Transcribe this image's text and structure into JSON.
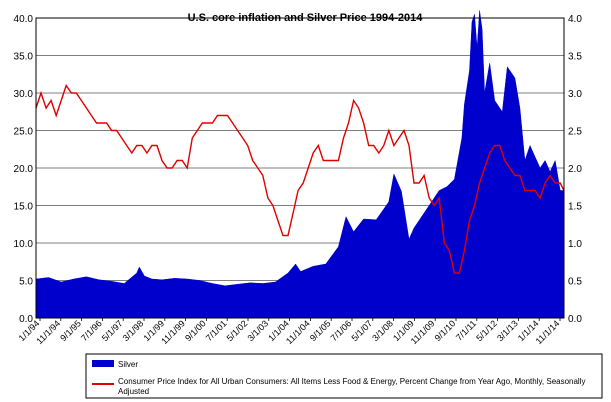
{
  "chart_data": {
    "type": "line",
    "title": "U.S. core inflation and Silver Price 1994-2014",
    "colors": {
      "silver": "#0000cc",
      "cpi": "#e00000",
      "grid": "#000000"
    },
    "left_axis": {
      "ylim": [
        0,
        40
      ],
      "ticks": [
        "0.0",
        "5.0",
        "10.0",
        "15.0",
        "20.0",
        "25.0",
        "30.0",
        "35.0",
        "40.0"
      ]
    },
    "right_axis": {
      "ylim": [
        0,
        4
      ],
      "ticks": [
        "0.0",
        "0.5",
        "1.0",
        "1.5",
        "2.0",
        "2.5",
        "3.0",
        "3.5",
        "4.0"
      ]
    },
    "x_ticks": [
      "1/1/94",
      "11/1/94",
      "9/1/95",
      "7/1/96",
      "5/1/97",
      "3/1/98",
      "1/1/99",
      "11/1/99",
      "9/1/00",
      "7/1/01",
      "5/1/02",
      "3/1/03",
      "1/1/04",
      "11/1/04",
      "9/1/05",
      "7/1/06",
      "5/1/07",
      "3/1/08",
      "1/1/09",
      "11/1/09",
      "9/1/10",
      "7/1/11",
      "5/1/12",
      "3/1/13",
      "1/1/14",
      "11/1/14"
    ],
    "x_range_years": [
      1994.0,
      2014.95
    ],
    "series": [
      {
        "name": "Silver",
        "axis": "left",
        "kind": "area",
        "x": [
          1994.0,
          1994.5,
          1995.0,
          1995.5,
          1996.0,
          1996.5,
          1997.0,
          1997.5,
          1998.0,
          1998.1,
          1998.3,
          1998.6,
          1999.0,
          1999.5,
          2000.0,
          2000.5,
          2001.0,
          2001.5,
          2002.0,
          2002.5,
          2003.0,
          2003.5,
          2004.0,
          2004.3,
          2004.5,
          2005.0,
          2005.5,
          2006.0,
          2006.3,
          2006.6,
          2007.0,
          2007.5,
          2008.0,
          2008.2,
          2008.5,
          2008.8,
          2009.0,
          2009.5,
          2010.0,
          2010.3,
          2010.6,
          2010.9,
          2011.0,
          2011.2,
          2011.3,
          2011.4,
          2011.5,
          2011.6,
          2011.7,
          2011.8,
          2012.0,
          2012.2,
          2012.5,
          2012.7,
          2013.0,
          2013.2,
          2013.4,
          2013.6,
          2013.8,
          2014.0,
          2014.2,
          2014.4,
          2014.6,
          2014.8,
          2014.95
        ],
        "values": [
          5.2,
          5.4,
          4.8,
          5.2,
          5.5,
          5.1,
          4.9,
          4.6,
          6.0,
          6.8,
          5.6,
          5.2,
          5.1,
          5.3,
          5.2,
          5.0,
          4.6,
          4.3,
          4.5,
          4.7,
          4.6,
          4.8,
          6.0,
          7.2,
          6.2,
          6.9,
          7.2,
          9.5,
          13.5,
          11.5,
          13.2,
          13.1,
          15.5,
          19.2,
          16.9,
          10.5,
          12.0,
          14.5,
          17.0,
          17.5,
          18.5,
          24.0,
          28.5,
          33.0,
          39.5,
          40.5,
          36.0,
          41.0,
          38.5,
          30.0,
          34.0,
          29.0,
          27.5,
          33.5,
          32.0,
          28.0,
          21.0,
          23.0,
          21.5,
          20.0,
          21.0,
          19.5,
          21.0,
          17.0,
          17.0
        ]
      },
      {
        "name": "Consumer Price Index for All Urban Consumers: All Items Less Food & Energy, Percent Change from Year Ago, Monthly, Seasonally Adjusted",
        "axis": "right",
        "kind": "line",
        "x": [
          1994.0,
          1994.2,
          1994.4,
          1994.6,
          1994.8,
          1995.0,
          1995.2,
          1995.4,
          1995.6,
          1995.8,
          1996.0,
          1996.2,
          1996.4,
          1996.6,
          1996.8,
          1997.0,
          1997.2,
          1997.4,
          1997.6,
          1997.8,
          1998.0,
          1998.2,
          1998.4,
          1998.6,
          1998.8,
          1999.0,
          1999.2,
          1999.4,
          1999.6,
          1999.8,
          2000.0,
          2000.2,
          2000.4,
          2000.6,
          2000.8,
          2001.0,
          2001.2,
          2001.4,
          2001.6,
          2001.8,
          2002.0,
          2002.2,
          2002.4,
          2002.6,
          2002.8,
          2003.0,
          2003.2,
          2003.4,
          2003.6,
          2003.8,
          2004.0,
          2004.2,
          2004.4,
          2004.6,
          2004.8,
          2005.0,
          2005.2,
          2005.4,
          2005.6,
          2005.8,
          2006.0,
          2006.2,
          2006.4,
          2006.6,
          2006.8,
          2007.0,
          2007.2,
          2007.4,
          2007.6,
          2007.8,
          2008.0,
          2008.2,
          2008.4,
          2008.6,
          2008.8,
          2009.0,
          2009.2,
          2009.4,
          2009.6,
          2009.8,
          2010.0,
          2010.2,
          2010.4,
          2010.6,
          2010.8,
          2011.0,
          2011.2,
          2011.4,
          2011.6,
          2011.8,
          2012.0,
          2012.2,
          2012.4,
          2012.6,
          2012.8,
          2013.0,
          2013.2,
          2013.4,
          2013.6,
          2013.8,
          2014.0,
          2014.2,
          2014.4,
          2014.6,
          2014.8,
          2014.95
        ],
        "values": [
          2.8,
          3.0,
          2.8,
          2.9,
          2.7,
          2.9,
          3.1,
          3.0,
          3.0,
          2.9,
          2.8,
          2.7,
          2.6,
          2.6,
          2.6,
          2.5,
          2.5,
          2.4,
          2.3,
          2.2,
          2.3,
          2.3,
          2.2,
          2.3,
          2.3,
          2.1,
          2.0,
          2.0,
          2.1,
          2.1,
          2.0,
          2.4,
          2.5,
          2.6,
          2.6,
          2.6,
          2.7,
          2.7,
          2.7,
          2.6,
          2.5,
          2.4,
          2.3,
          2.1,
          2.0,
          1.9,
          1.6,
          1.5,
          1.3,
          1.1,
          1.1,
          1.4,
          1.7,
          1.8,
          2.0,
          2.2,
          2.3,
          2.1,
          2.1,
          2.1,
          2.1,
          2.4,
          2.6,
          2.9,
          2.8,
          2.6,
          2.3,
          2.3,
          2.2,
          2.3,
          2.5,
          2.3,
          2.4,
          2.5,
          2.3,
          1.8,
          1.8,
          1.9,
          1.6,
          1.5,
          1.6,
          1.0,
          0.9,
          0.6,
          0.6,
          0.9,
          1.3,
          1.5,
          1.8,
          2.0,
          2.2,
          2.3,
          2.3,
          2.1,
          2.0,
          1.9,
          1.9,
          1.7,
          1.7,
          1.7,
          1.6,
          1.8,
          1.9,
          1.8,
          1.8,
          1.7
        ]
      }
    ],
    "legend": {
      "placement": "bottom",
      "entries": [
        {
          "label": "Silver",
          "swatch": "box",
          "color": "#0000cc"
        },
        {
          "label": "Consumer Price Index for All Urban Consumers: All Items Less Food & Energy, Percent Change from Year Ago, Monthly, Seasonally Adjusted",
          "swatch": "line",
          "color": "#e00000"
        }
      ]
    }
  }
}
